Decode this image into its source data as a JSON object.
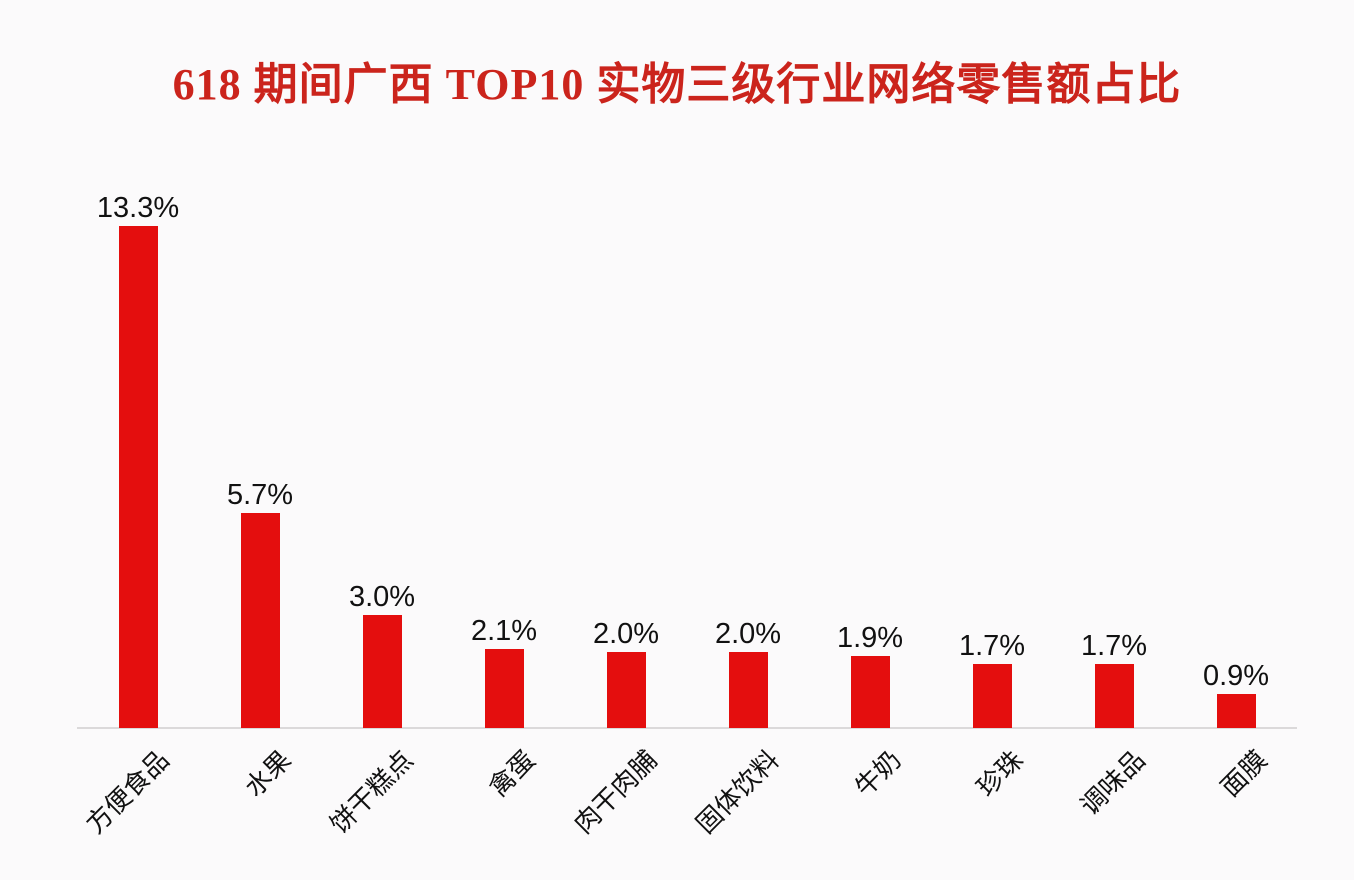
{
  "page": {
    "background_color": "#FBFAFB",
    "title_color": "#CB241C",
    "bar_color": "#E40E0E",
    "text_color": "#111111",
    "axis_line_color": "#DBD9DA"
  },
  "chart_data": {
    "type": "bar",
    "title": "618 期间广西 TOP10 实物三级行业网络零售额占比",
    "categories": [
      "方便食品",
      "水果",
      "饼干糕点",
      "禽蛋",
      "肉干肉脯",
      "固体饮料",
      "牛奶",
      "珍珠",
      "调味品",
      "面膜"
    ],
    "values": [
      13.3,
      5.7,
      3.0,
      2.1,
      2.0,
      2.0,
      1.9,
      1.7,
      1.7,
      0.9
    ],
    "data_labels": [
      "13.3%",
      "5.7%",
      "3.0%",
      "2.1%",
      "2.0%",
      "2.0%",
      "1.9%",
      "1.7%",
      "1.7%",
      "0.9%"
    ],
    "xlabel": "",
    "ylabel": "",
    "ylim": [
      0,
      14
    ],
    "grid": false,
    "legend": null,
    "x_tick_rotation": 45,
    "bar_color": "#E40E0E",
    "data_label_color": "#111111",
    "category_label_color": "#111111"
  }
}
